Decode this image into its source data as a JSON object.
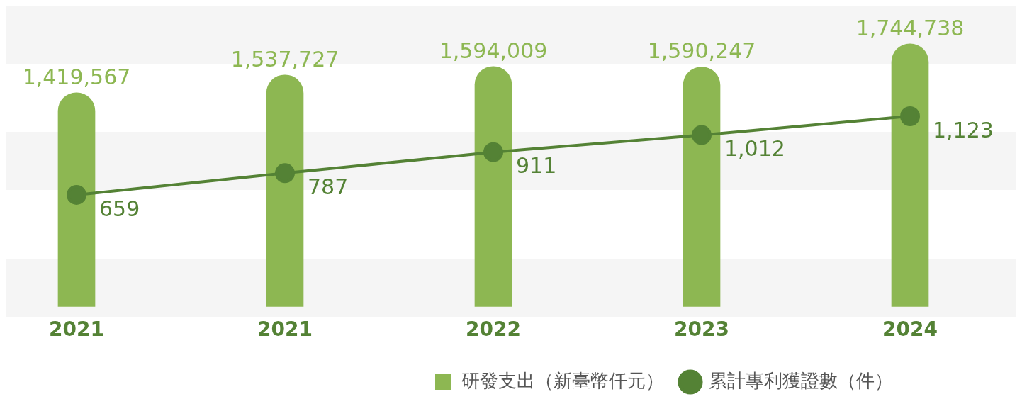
{
  "chart_data": {
    "type": "bar",
    "categories": [
      "2021",
      "2021",
      "2022",
      "2023",
      "2024"
    ],
    "series": [
      {
        "name": "研發支出（新臺幣仟元）",
        "color": "#8db752",
        "values": [
          1419567,
          1537727,
          1594009,
          1590247,
          1744738
        ],
        "value_labels": [
          "1,419,567",
          "1,537,727",
          "1,594,009",
          "1,590,247",
          "1,744,738"
        ]
      },
      {
        "name": "累計專利獲證數（件）",
        "type": "line",
        "axis": "y2",
        "color": "#548235",
        "marker": "circle",
        "values": [
          659,
          787,
          911,
          1012,
          1123
        ],
        "value_labels": [
          "659",
          "787",
          "911",
          "1,012",
          "1,123"
        ]
      }
    ],
    "tick_labels": "x",
    "grid": false,
    "legend": "bottom right"
  }
}
